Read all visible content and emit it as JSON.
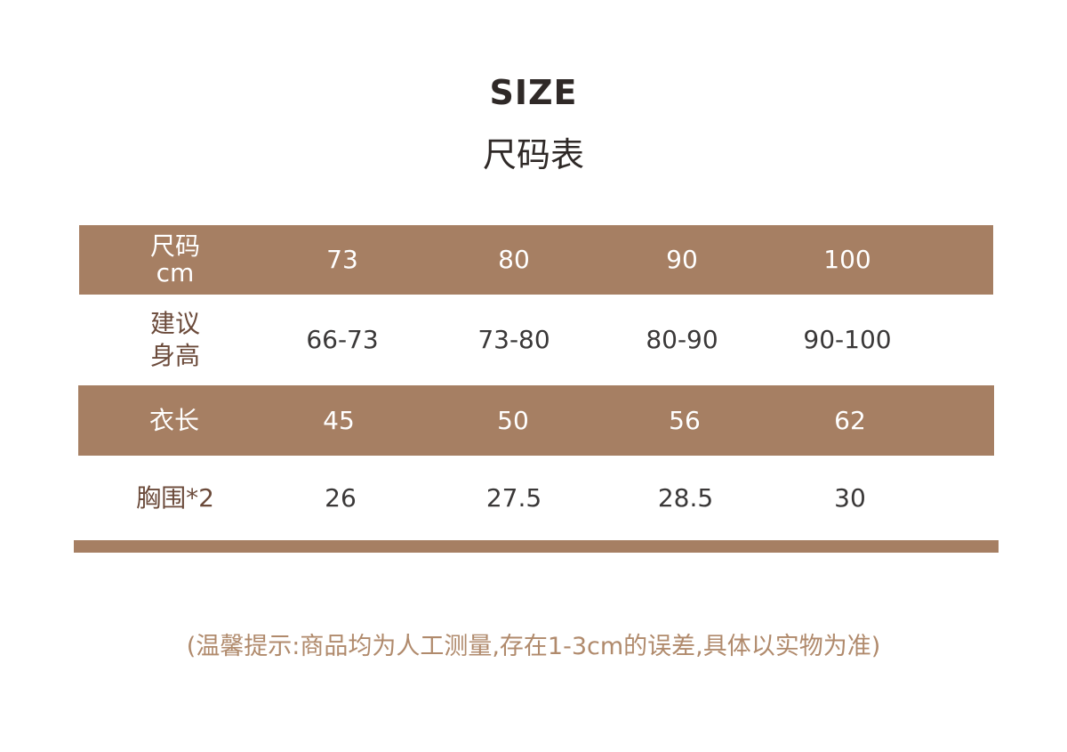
{
  "title_en": "SIZE",
  "title_cn": "尺码表",
  "colors": {
    "band": "#a67f63",
    "label": "#6b4a3a",
    "value": "#3a3838",
    "note": "#b08a6c"
  },
  "rows": [
    {
      "label_line1": "尺码",
      "label_line2": "cm",
      "values": [
        "73",
        "80",
        "90",
        "100"
      ]
    },
    {
      "label_line1": "建议",
      "label_line2": "身高",
      "values": [
        "66-73",
        "73-80",
        "80-90",
        "90-100"
      ]
    },
    {
      "label_line1": "衣长",
      "label_line2": "",
      "values": [
        "45",
        "50",
        "56",
        "62"
      ]
    },
    {
      "label_line1": "胸围*2",
      "label_line2": "",
      "values": [
        "26",
        "27.5",
        "28.5",
        "30"
      ]
    }
  ],
  "note": "(温馨提示:商品均为人工测量,存在1-3cm的误差,具体以实物为准)"
}
